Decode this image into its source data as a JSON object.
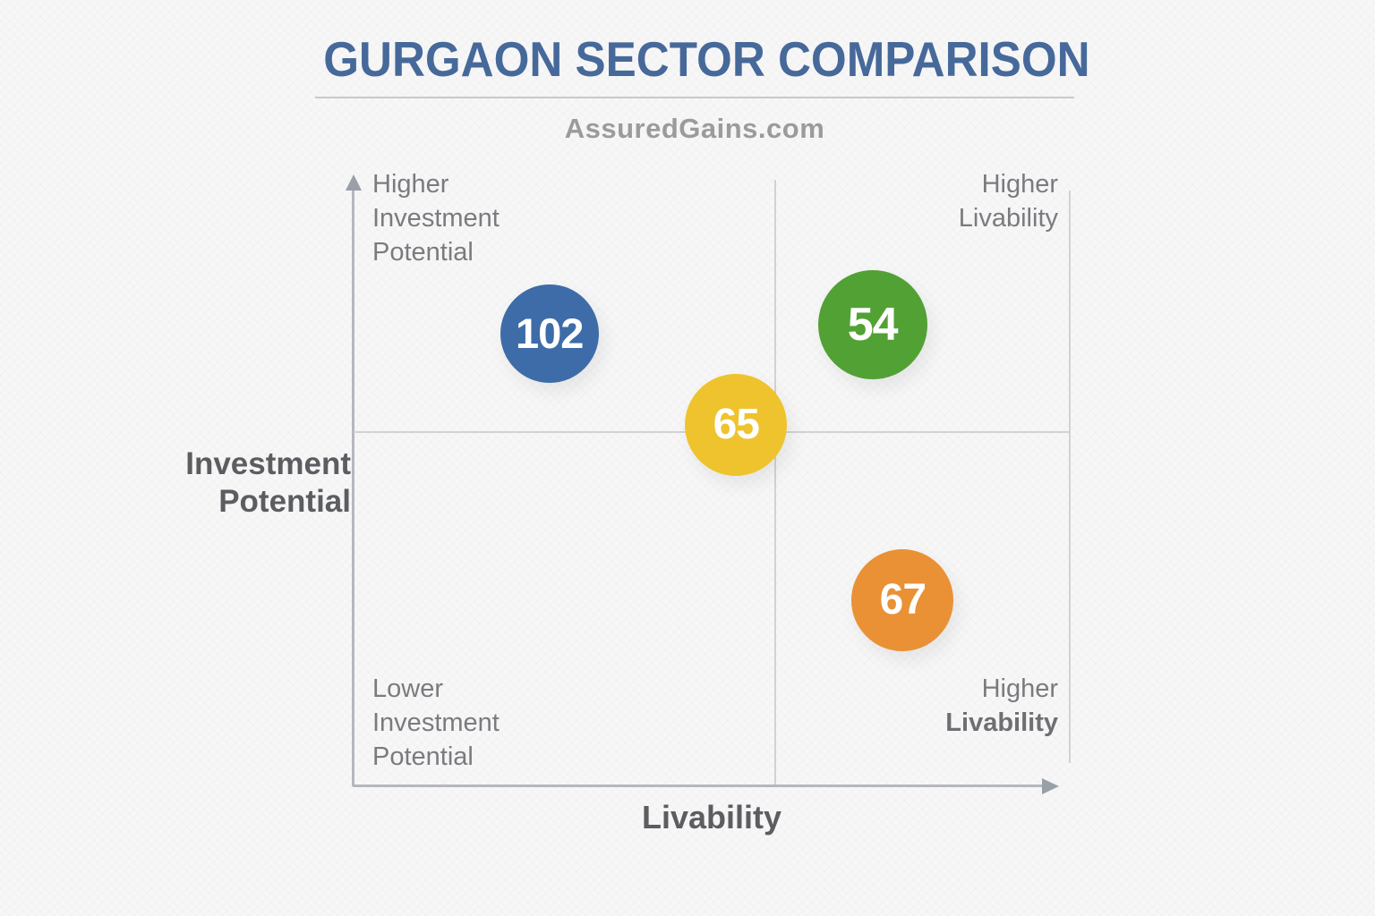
{
  "header": {
    "title": "GURGAON SECTOR COMPARISON",
    "subtitle": "AssuredGains.com"
  },
  "colors": {
    "title": "#46699a",
    "subtitle": "#9b9b9b",
    "divider": "#c9c9cb",
    "quadrant_label": "#7a7b7e",
    "axis_label": "#5c5d60",
    "axis_line": "#b4b8be",
    "grid_line": "#d2d2d4",
    "arrow": "#9aa0a8"
  },
  "icons": {
    "y_axis_arrow": "up-arrow",
    "x_axis_arrow": "right-arrow"
  },
  "chart_data": {
    "type": "scatter",
    "subtype": "quadrant_bubble_chart",
    "title": "GURGAON SECTOR COMPARISON",
    "source": "AssuredGains.com",
    "xlabel": "Livability",
    "ylabel": "Investment Potential",
    "ylabel_lines": [
      "Investment",
      "Potential"
    ],
    "axes": {
      "x": {
        "label": "Livability",
        "direction": "increases to the right",
        "range_pct": [
          0,
          100
        ],
        "tick_labels": "none"
      },
      "y": {
        "label": "Investment Potential",
        "direction": "increases upward",
        "range_pct": [
          0,
          100
        ],
        "tick_labels": "none"
      }
    },
    "grid": "quadrant cross-lines",
    "legend_position": "none",
    "quadrant_labels": {
      "top_left": [
        "Higher",
        "Investment",
        "Potential"
      ],
      "top_right": [
        "Higher",
        "Livability"
      ],
      "bottom_left": [
        "Lower",
        "Investment",
        "Potential"
      ],
      "bottom_right": [
        "Higher",
        "Livability"
      ]
    },
    "points": [
      {
        "sector": "102",
        "x_pct": 27.4,
        "y_pct": 74.2,
        "radius_px": 55,
        "color": "#3e6ca8"
      },
      {
        "sector": "54",
        "x_pct": 72.4,
        "y_pct": 75.6,
        "radius_px": 61,
        "color": "#52a134"
      },
      {
        "sector": "65",
        "x_pct": 53.4,
        "y_pct": 59.3,
        "radius_px": 57,
        "color": "#eec32d"
      },
      {
        "sector": "67",
        "x_pct": 76.6,
        "y_pct": 30.5,
        "radius_px": 57,
        "color": "#e99134"
      }
    ]
  }
}
